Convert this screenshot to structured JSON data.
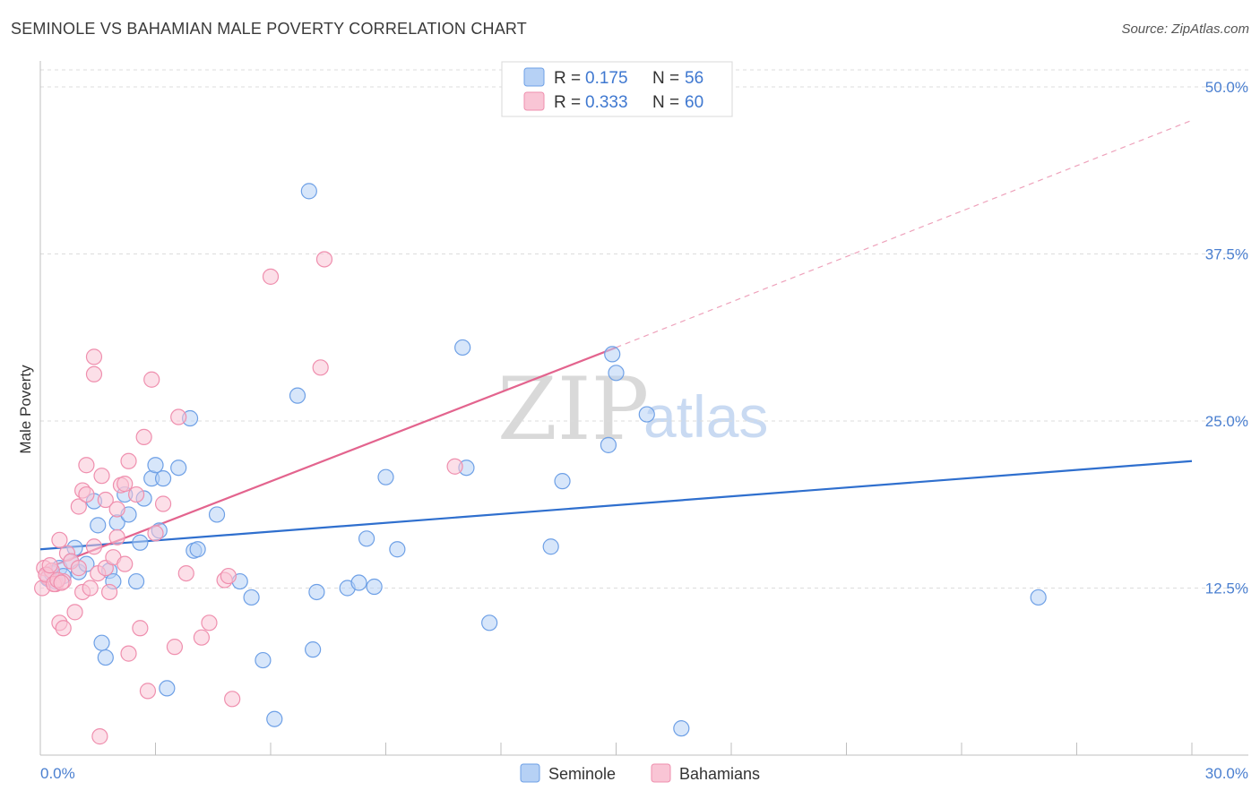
{
  "header": {
    "title": "SEMINOLE VS BAHAMIAN MALE POVERTY CORRELATION CHART",
    "source": "Source: ZipAtlas.com"
  },
  "watermark": {
    "zip": "ZIP",
    "atlas": "atlas"
  },
  "legend": {
    "rows": [
      {
        "r_label": "R =",
        "r_value": "0.175",
        "n_label": "N =",
        "n_value": "56",
        "color": "#a9c8f2"
      },
      {
        "r_label": "R =",
        "r_value": "0.333",
        "n_label": "N =",
        "n_value": "60",
        "color": "#f6b8cb"
      }
    ]
  },
  "chart_data": {
    "type": "scatter",
    "title": "SEMINOLE VS BAHAMIAN MALE POVERTY CORRELATION CHART",
    "xlabel": "",
    "ylabel": "Male Poverty",
    "xlim": [
      0,
      30
    ],
    "ylim": [
      0,
      50
    ],
    "x_tick_labels": [
      "0.0%",
      "30.0%"
    ],
    "y_ticks": [
      12.5,
      25.0,
      37.5,
      50.0
    ],
    "y_tick_labels": [
      "12.5%",
      "25.0%",
      "37.5%",
      "50.0%"
    ],
    "grid": true,
    "legend_position": "top-center",
    "series": [
      {
        "name": "Seminole",
        "color": "#6ea0e6",
        "fill": "#b6d1f5",
        "trend": {
          "x0": 0,
          "y0": 15.4,
          "x1": 30,
          "y1": 22.0,
          "color": "#2f6fce"
        },
        "points": [
          [
            0.2,
            13.2
          ],
          [
            0.3,
            13.6
          ],
          [
            0.4,
            13.0
          ],
          [
            0.5,
            14.0
          ],
          [
            0.6,
            13.4
          ],
          [
            0.8,
            14.5
          ],
          [
            0.9,
            15.5
          ],
          [
            1.0,
            13.7
          ],
          [
            1.2,
            14.3
          ],
          [
            1.4,
            19.0
          ],
          [
            1.5,
            17.2
          ],
          [
            1.6,
            8.4
          ],
          [
            1.7,
            7.3
          ],
          [
            1.8,
            13.8
          ],
          [
            1.9,
            13.0
          ],
          [
            2.0,
            17.4
          ],
          [
            2.2,
            19.5
          ],
          [
            2.3,
            18.0
          ],
          [
            2.5,
            13.0
          ],
          [
            2.6,
            15.9
          ],
          [
            2.7,
            19.2
          ],
          [
            2.9,
            20.7
          ],
          [
            3.0,
            21.7
          ],
          [
            3.1,
            16.8
          ],
          [
            3.2,
            20.7
          ],
          [
            3.3,
            5.0
          ],
          [
            3.6,
            21.5
          ],
          [
            3.9,
            25.2
          ],
          [
            4.0,
            15.3
          ],
          [
            4.1,
            15.4
          ],
          [
            4.6,
            18.0
          ],
          [
            5.2,
            13.0
          ],
          [
            5.5,
            11.8
          ],
          [
            5.8,
            7.1
          ],
          [
            6.1,
            2.7
          ],
          [
            6.7,
            26.9
          ],
          [
            7.0,
            42.2
          ],
          [
            7.1,
            7.9
          ],
          [
            7.2,
            12.2
          ],
          [
            8.0,
            12.5
          ],
          [
            8.3,
            12.9
          ],
          [
            8.5,
            16.2
          ],
          [
            8.7,
            12.6
          ],
          [
            9.0,
            20.8
          ],
          [
            9.3,
            15.4
          ],
          [
            11.0,
            30.5
          ],
          [
            11.1,
            21.5
          ],
          [
            11.7,
            9.9
          ],
          [
            13.3,
            15.6
          ],
          [
            13.6,
            20.5
          ],
          [
            14.8,
            23.2
          ],
          [
            14.9,
            30.0
          ],
          [
            15.0,
            28.6
          ],
          [
            15.8,
            25.5
          ],
          [
            16.7,
            2.0
          ],
          [
            26.0,
            11.8
          ]
        ]
      },
      {
        "name": "Bahamians",
        "color": "#ef8fae",
        "fill": "#f9c5d5",
        "trend": {
          "x0": 0,
          "y0": 13.8,
          "x1": 15.0,
          "y1": 30.5,
          "color": "#e3648e",
          "extrapolate_to": [
            30,
            47.5
          ]
        },
        "points": [
          [
            0.1,
            14.0
          ],
          [
            0.2,
            13.3
          ],
          [
            0.3,
            13.8
          ],
          [
            0.4,
            12.8
          ],
          [
            0.5,
            16.1
          ],
          [
            0.5,
            9.9
          ],
          [
            0.6,
            9.5
          ],
          [
            0.6,
            13.0
          ],
          [
            0.7,
            15.1
          ],
          [
            0.8,
            14.5
          ],
          [
            0.9,
            10.7
          ],
          [
            1.0,
            14.0
          ],
          [
            1.0,
            18.6
          ],
          [
            1.1,
            19.8
          ],
          [
            1.1,
            12.2
          ],
          [
            1.2,
            19.5
          ],
          [
            1.2,
            21.7
          ],
          [
            1.3,
            12.5
          ],
          [
            1.4,
            15.6
          ],
          [
            1.4,
            29.8
          ],
          [
            1.4,
            28.5
          ],
          [
            1.5,
            13.6
          ],
          [
            1.6,
            20.9
          ],
          [
            1.7,
            14.0
          ],
          [
            1.7,
            19.1
          ],
          [
            1.8,
            12.2
          ],
          [
            1.9,
            14.8
          ],
          [
            2.0,
            16.3
          ],
          [
            2.0,
            18.4
          ],
          [
            2.1,
            20.2
          ],
          [
            2.2,
            14.3
          ],
          [
            2.2,
            20.3
          ],
          [
            2.3,
            7.6
          ],
          [
            2.3,
            22.0
          ],
          [
            2.5,
            19.5
          ],
          [
            2.6,
            9.5
          ],
          [
            2.7,
            23.8
          ],
          [
            2.8,
            4.8
          ],
          [
            2.9,
            28.1
          ],
          [
            3.0,
            16.6
          ],
          [
            3.2,
            18.8
          ],
          [
            3.5,
            8.1
          ],
          [
            3.6,
            25.3
          ],
          [
            3.8,
            13.6
          ],
          [
            4.2,
            8.8
          ],
          [
            4.4,
            9.9
          ],
          [
            4.8,
            13.1
          ],
          [
            4.9,
            13.4
          ],
          [
            5.0,
            4.2
          ],
          [
            6.0,
            35.8
          ],
          [
            7.3,
            29.0
          ],
          [
            7.4,
            37.1
          ],
          [
            10.8,
            21.6
          ],
          [
            0.05,
            12.5
          ],
          [
            0.15,
            13.5
          ],
          [
            0.25,
            14.2
          ],
          [
            0.35,
            12.8
          ],
          [
            0.45,
            13.1
          ],
          [
            0.55,
            12.9
          ],
          [
            1.55,
            1.4
          ]
        ]
      }
    ]
  },
  "bottom_legend": {
    "items": [
      "Seminole",
      "Bahamians"
    ]
  }
}
